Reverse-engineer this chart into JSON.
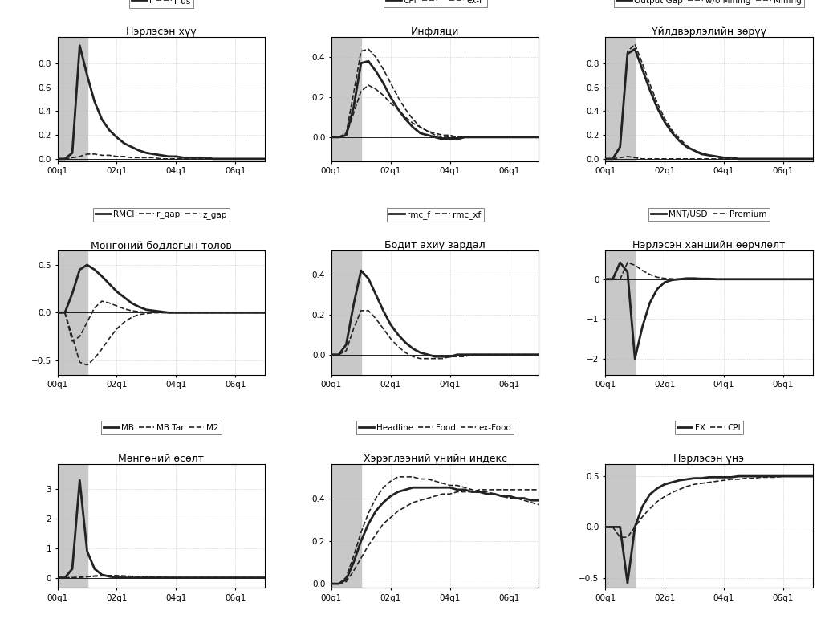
{
  "panels": [
    {
      "title": "Нэрлэсэн хүү",
      "legend": [
        [
          "i",
          "solid",
          2.0
        ],
        [
          "i_us",
          "dashed",
          1.2
        ]
      ],
      "ylim": [
        -0.02,
        1.02
      ],
      "yticks": [
        0.0,
        0.2,
        0.4,
        0.6,
        0.8
      ],
      "series_data": [
        [
          0,
          0,
          0.05,
          0.95,
          0.7,
          0.48,
          0.33,
          0.24,
          0.18,
          0.13,
          0.1,
          0.07,
          0.05,
          0.04,
          0.03,
          0.02,
          0.02,
          0.01,
          0.01,
          0.01,
          0.01,
          0.0,
          0.0,
          0.0,
          0.0,
          0.0,
          0.0,
          0.0,
          0.0
        ],
        [
          0,
          0,
          0.01,
          0.02,
          0.04,
          0.04,
          0.03,
          0.03,
          0.02,
          0.02,
          0.01,
          0.01,
          0.01,
          0.01,
          0.0,
          0.0,
          0.0,
          0.0,
          0.0,
          0.0,
          0.0,
          0.0,
          0.0,
          0.0,
          0.0,
          0.0,
          0.0,
          0.0,
          0.0
        ]
      ]
    },
    {
      "title": "Инфляци",
      "legend": [
        [
          "CPI",
          "solid",
          2.0
        ],
        [
          "F",
          "dashed",
          1.2
        ],
        [
          "ex-F",
          "dashed",
          1.2
        ]
      ],
      "ylim": [
        -0.12,
        0.5
      ],
      "yticks": [
        0.0,
        0.2,
        0.4
      ],
      "series_data": [
        [
          0,
          0,
          0.01,
          0.15,
          0.37,
          0.38,
          0.33,
          0.27,
          0.2,
          0.14,
          0.09,
          0.05,
          0.02,
          0.01,
          0.0,
          -0.01,
          -0.01,
          -0.01,
          0.0,
          0.0,
          0.0,
          0.0,
          0.0,
          0.0,
          0.0,
          0.0,
          0.0,
          0.0,
          0.0
        ],
        [
          0,
          0,
          0.02,
          0.22,
          0.43,
          0.44,
          0.4,
          0.34,
          0.27,
          0.2,
          0.14,
          0.09,
          0.05,
          0.03,
          0.01,
          0.0,
          0.0,
          0.0,
          0.0,
          0.0,
          0.0,
          0.0,
          0.0,
          0.0,
          0.0,
          0.0,
          0.0,
          0.0,
          0.0
        ],
        [
          0,
          0,
          0.01,
          0.12,
          0.23,
          0.26,
          0.24,
          0.21,
          0.17,
          0.14,
          0.1,
          0.07,
          0.05,
          0.03,
          0.02,
          0.01,
          0.01,
          0.0,
          0.0,
          0.0,
          0.0,
          0.0,
          0.0,
          0.0,
          0.0,
          0.0,
          0.0,
          0.0,
          0.0
        ]
      ]
    },
    {
      "title": "Үйлдвэрлэлийн зөрүү",
      "legend": [
        [
          "Output Gap",
          "solid",
          2.0
        ],
        [
          "w/o Mining",
          "dashed",
          1.2
        ],
        [
          "Mining",
          "dashed",
          1.2
        ]
      ],
      "ylim": [
        -0.02,
        1.02
      ],
      "yticks": [
        0.0,
        0.2,
        0.4,
        0.6,
        0.8
      ],
      "series_data": [
        [
          0,
          0,
          0.1,
          0.88,
          0.92,
          0.75,
          0.58,
          0.43,
          0.31,
          0.22,
          0.15,
          0.1,
          0.07,
          0.04,
          0.03,
          0.02,
          0.01,
          0.01,
          0.0,
          0.0,
          0.0,
          0.0,
          0.0,
          0.0,
          0.0,
          0.0,
          0.0,
          0.0,
          0.0
        ],
        [
          0,
          0,
          0.1,
          0.9,
          0.96,
          0.8,
          0.63,
          0.47,
          0.34,
          0.24,
          0.17,
          0.11,
          0.07,
          0.05,
          0.03,
          0.02,
          0.01,
          0.01,
          0.0,
          0.0,
          0.0,
          0.0,
          0.0,
          0.0,
          0.0,
          0.0,
          0.0,
          0.0,
          0.0
        ],
        [
          0,
          0,
          0.01,
          0.02,
          0.01,
          0.0,
          0.0,
          0.0,
          0.0,
          0.0,
          0.0,
          0.0,
          0.0,
          0.0,
          0.0,
          0.0,
          0.0,
          0.0,
          0.0,
          0.0,
          0.0,
          0.0,
          0.0,
          0.0,
          0.0,
          0.0,
          0.0,
          0.0,
          0.0
        ]
      ]
    },
    {
      "title": "Мөнгөний бодлогын төлөв",
      "legend": [
        [
          "RMCI",
          "solid",
          2.0
        ],
        [
          "r_gap",
          "dashed",
          1.2
        ],
        [
          "z_gap",
          "dashed",
          1.2
        ]
      ],
      "ylim": [
        -0.65,
        0.65
      ],
      "yticks": [
        -0.5,
        0.0,
        0.5
      ],
      "series_data": [
        [
          0,
          0,
          0.2,
          0.45,
          0.5,
          0.45,
          0.38,
          0.3,
          0.22,
          0.16,
          0.1,
          0.06,
          0.03,
          0.02,
          0.01,
          0.0,
          0.0,
          0.0,
          0.0,
          0.0,
          0.0,
          0.0,
          0.0,
          0.0,
          0.0,
          0.0,
          0.0,
          0.0,
          0.0
        ],
        [
          0,
          0,
          -0.3,
          -0.25,
          -0.1,
          0.05,
          0.12,
          0.1,
          0.07,
          0.04,
          0.02,
          0.01,
          0.0,
          0.0,
          0.0,
          0.0,
          0.0,
          0.0,
          0.0,
          0.0,
          0.0,
          0.0,
          0.0,
          0.0,
          0.0,
          0.0,
          0.0,
          0.0,
          0.0
        ],
        [
          0,
          0,
          -0.25,
          -0.52,
          -0.55,
          -0.48,
          -0.38,
          -0.27,
          -0.17,
          -0.1,
          -0.05,
          -0.02,
          -0.01,
          0.0,
          0.0,
          0.0,
          0.0,
          0.0,
          0.0,
          0.0,
          0.0,
          0.0,
          0.0,
          0.0,
          0.0,
          0.0,
          0.0,
          0.0,
          0.0
        ]
      ]
    },
    {
      "title": "Бодит ахиу зардал",
      "legend": [
        [
          "rmc_f",
          "solid",
          2.0
        ],
        [
          "rmc_xf",
          "dashed",
          1.2
        ]
      ],
      "ylim": [
        -0.1,
        0.52
      ],
      "yticks": [
        0.0,
        0.2,
        0.4
      ],
      "series_data": [
        [
          0,
          0,
          0.05,
          0.25,
          0.42,
          0.38,
          0.3,
          0.22,
          0.15,
          0.1,
          0.06,
          0.03,
          0.01,
          0.0,
          -0.01,
          -0.01,
          -0.01,
          0.0,
          0.0,
          0.0,
          0.0,
          0.0,
          0.0,
          0.0,
          0.0,
          0.0,
          0.0,
          0.0,
          0.0
        ],
        [
          0,
          0,
          0.02,
          0.13,
          0.22,
          0.22,
          0.18,
          0.13,
          0.08,
          0.04,
          0.01,
          -0.01,
          -0.02,
          -0.02,
          -0.02,
          -0.02,
          -0.01,
          -0.01,
          -0.01,
          0.0,
          0.0,
          0.0,
          0.0,
          0.0,
          0.0,
          0.0,
          0.0,
          0.0,
          0.0
        ]
      ]
    },
    {
      "title": "Нэрлэсэн ханшийн өөрчлөлт",
      "legend": [
        [
          "MNT/USD",
          "solid",
          2.0
        ],
        [
          "Premium",
          "dashed",
          1.2
        ]
      ],
      "ylim": [
        -2.4,
        0.72
      ],
      "yticks": [
        -2.0,
        -1.0,
        0.0
      ],
      "series_data": [
        [
          0,
          0,
          0.42,
          0.18,
          -2.0,
          -1.2,
          -0.6,
          -0.25,
          -0.08,
          -0.02,
          0.0,
          0.02,
          0.02,
          0.01,
          0.01,
          0.0,
          0.0,
          0.0,
          0.0,
          0.0,
          0.0,
          0.0,
          0.0,
          0.0,
          0.0,
          0.0,
          0.0,
          0.0,
          0.0
        ],
        [
          0,
          0,
          0.0,
          0.42,
          0.35,
          0.22,
          0.12,
          0.05,
          0.02,
          0.01,
          0.0,
          0.0,
          0.0,
          0.0,
          0.0,
          0.0,
          0.0,
          0.0,
          0.0,
          0.0,
          0.0,
          0.0,
          0.0,
          0.0,
          0.0,
          0.0,
          0.0,
          0.0,
          0.0
        ]
      ]
    },
    {
      "title": "Мөнгөний өсөлт",
      "legend": [
        [
          "MB",
          "solid",
          2.0
        ],
        [
          "MB Tar",
          "dashed",
          1.2
        ],
        [
          "M2",
          "dashed",
          1.2
        ]
      ],
      "ylim": [
        -0.35,
        3.85
      ],
      "yticks": [
        0.0,
        1.0,
        2.0,
        3.0
      ],
      "series_data": [
        [
          0,
          0,
          0.3,
          3.3,
          0.9,
          0.3,
          0.1,
          0.04,
          0.01,
          0.0,
          0.0,
          0.0,
          0.0,
          0.0,
          0.0,
          0.0,
          0.0,
          0.0,
          0.0,
          0.0,
          0.0,
          0.0,
          0.0,
          0.0,
          0.0,
          0.0,
          0.0,
          0.0,
          0.0
        ],
        [
          0,
          0,
          0.0,
          0.02,
          0.04,
          0.06,
          0.07,
          0.07,
          0.06,
          0.05,
          0.04,
          0.03,
          0.02,
          0.01,
          0.01,
          0.0,
          0.0,
          0.0,
          0.0,
          0.0,
          0.0,
          0.0,
          0.0,
          0.0,
          0.0,
          0.0,
          0.0,
          0.0,
          0.0
        ],
        [
          0,
          0,
          0.0,
          0.01,
          0.03,
          0.05,
          0.06,
          0.07,
          0.07,
          0.06,
          0.05,
          0.04,
          0.03,
          0.02,
          0.01,
          0.01,
          0.0,
          0.0,
          0.0,
          0.0,
          0.0,
          0.0,
          0.0,
          0.0,
          0.0,
          0.0,
          0.0,
          0.0,
          0.0
        ]
      ]
    },
    {
      "title": "Хэрэглээний үнийн индекс",
      "legend": [
        [
          "Headline",
          "solid",
          2.0
        ],
        [
          "Food",
          "dashed",
          1.2
        ],
        [
          "ex-Food",
          "dashed",
          1.2
        ]
      ],
      "ylim": [
        -0.02,
        0.56
      ],
      "yticks": [
        0.0,
        0.2,
        0.4
      ],
      "series_data": [
        [
          0,
          0,
          0.02,
          0.1,
          0.2,
          0.28,
          0.34,
          0.38,
          0.41,
          0.43,
          0.44,
          0.45,
          0.45,
          0.45,
          0.45,
          0.45,
          0.45,
          0.44,
          0.44,
          0.43,
          0.43,
          0.42,
          0.42,
          0.41,
          0.41,
          0.4,
          0.4,
          0.39,
          0.39
        ],
        [
          0,
          0,
          0.03,
          0.13,
          0.24,
          0.33,
          0.4,
          0.45,
          0.48,
          0.5,
          0.5,
          0.5,
          0.49,
          0.49,
          0.48,
          0.47,
          0.46,
          0.46,
          0.45,
          0.44,
          0.43,
          0.43,
          0.42,
          0.41,
          0.4,
          0.4,
          0.39,
          0.38,
          0.37
        ],
        [
          0,
          0,
          0.01,
          0.06,
          0.12,
          0.18,
          0.23,
          0.28,
          0.31,
          0.34,
          0.36,
          0.38,
          0.39,
          0.4,
          0.41,
          0.42,
          0.42,
          0.43,
          0.43,
          0.43,
          0.44,
          0.44,
          0.44,
          0.44,
          0.44,
          0.44,
          0.44,
          0.44,
          0.44
        ]
      ]
    },
    {
      "title": "Нэрлэсэн үнэ",
      "legend": [
        [
          "FX",
          "solid",
          2.0
        ],
        [
          "CPI",
          "dashed",
          1.2
        ]
      ],
      "ylim": [
        -0.6,
        0.62
      ],
      "yticks": [
        -0.5,
        0.0,
        0.5
      ],
      "series_data": [
        [
          0,
          0,
          0.0,
          -0.55,
          0.0,
          0.2,
          0.32,
          0.38,
          0.42,
          0.44,
          0.46,
          0.47,
          0.48,
          0.48,
          0.49,
          0.49,
          0.49,
          0.49,
          0.5,
          0.5,
          0.5,
          0.5,
          0.5,
          0.5,
          0.5,
          0.5,
          0.5,
          0.5,
          0.5
        ],
        [
          0,
          0,
          -0.1,
          -0.1,
          0.0,
          0.1,
          0.18,
          0.25,
          0.3,
          0.34,
          0.37,
          0.4,
          0.42,
          0.43,
          0.44,
          0.45,
          0.46,
          0.47,
          0.47,
          0.48,
          0.48,
          0.49,
          0.49,
          0.49,
          0.5,
          0.5,
          0.5,
          0.5,
          0.5
        ]
      ]
    }
  ],
  "xticks_labels": [
    "00q1",
    "02q1",
    "04q1",
    "06q1"
  ],
  "xticks_pos": [
    0,
    8,
    16,
    24
  ],
  "n_quarters": 29,
  "shade_end": 4,
  "shade_color": "#c8c8c8",
  "grid_color": "#bbbbbb",
  "line_color": "#222222",
  "bg_color": "#ffffff",
  "title_fontsize": 9,
  "legend_fontsize": 7.5,
  "tick_fontsize": 7.5
}
